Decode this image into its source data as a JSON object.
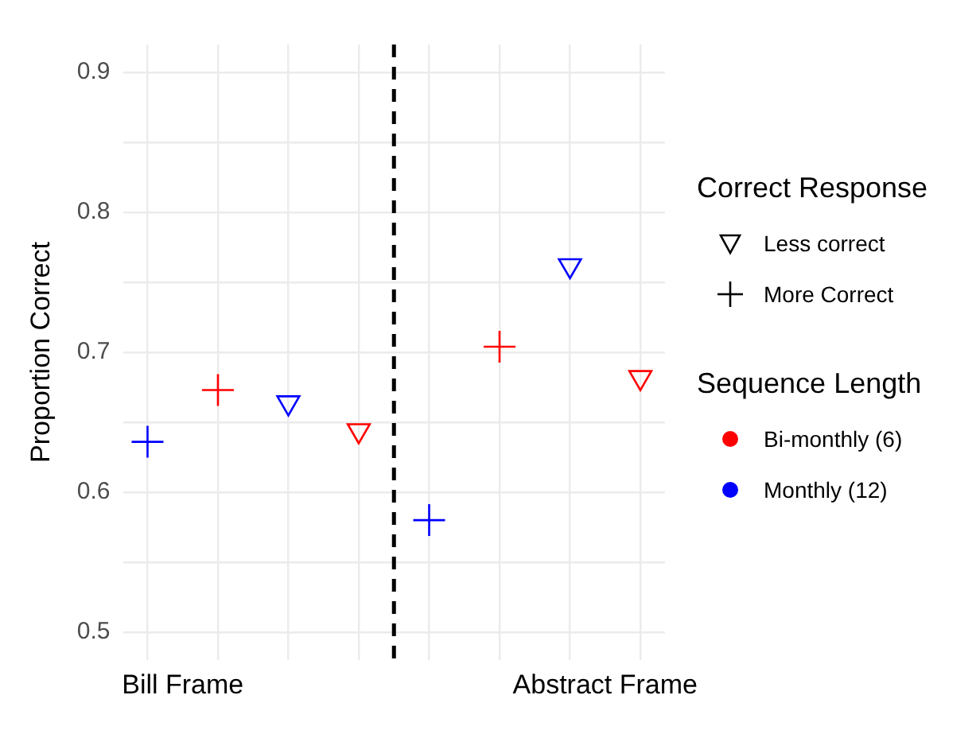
{
  "chart_data": {
    "type": "scatter",
    "ylabel": "Proportion Correct",
    "categories": [
      null,
      null,
      null,
      null,
      null,
      null,
      null,
      null
    ],
    "annotations": [
      "Bill Frame",
      "Abstract Frame"
    ],
    "ylim": [
      0.48,
      0.92
    ],
    "yticks": [
      0.5,
      {
        "value": 0.55,
        "label": null
      },
      0.6,
      {
        "value": 0.65,
        "label": null
      },
      0.7,
      {
        "value": 0.75,
        "label": null
      },
      0.8,
      {
        "value": 0.85,
        "label": null
      },
      0.9
    ],
    "grid": true,
    "legend": "right",
    "legend_title": [
      "Correct Response",
      "Sequence Length"
    ],
    "series": [
      {
        "color": "#0000ff",
        "marker": "cross",
        "values": [
          0.636,
          null,
          null,
          null,
          0.58,
          null,
          null,
          null
        ]
      },
      {
        "color": "#ff0000",
        "marker": "cross",
        "values": [
          null,
          0.673,
          null,
          null,
          null,
          0.704,
          null,
          null
        ]
      },
      {
        "color": "#0000ff",
        "marker": "triangle",
        "values": [
          null,
          null,
          0.664,
          null,
          null,
          null,
          0.762,
          null
        ]
      },
      {
        "color": "#ff0000",
        "marker": "triangle",
        "values": [
          null,
          null,
          null,
          0.644,
          null,
          null,
          null,
          0.682
        ]
      },
      {
        "name": "Less correct",
        "color": "#000000",
        "marker": "triangle",
        "values": [
          null,
          null,
          null,
          null,
          null,
          null,
          null,
          null
        ]
      },
      {
        "name": "More Correct",
        "color": "#000000",
        "marker": "cross",
        "values": [
          null,
          null,
          null,
          null,
          null,
          null,
          null,
          null
        ]
      },
      {
        "name": "Bi-monthly (6)",
        "color": "#ff0000",
        "marker": "circle",
        "values": [
          null,
          null,
          null,
          null,
          null,
          null,
          null,
          null
        ]
      },
      {
        "name": "Monthly (12)",
        "color": "#0000ff",
        "marker": "circle",
        "values": [
          null,
          null,
          null,
          null,
          null,
          null,
          null,
          null
        ]
      }
    ]
  }
}
